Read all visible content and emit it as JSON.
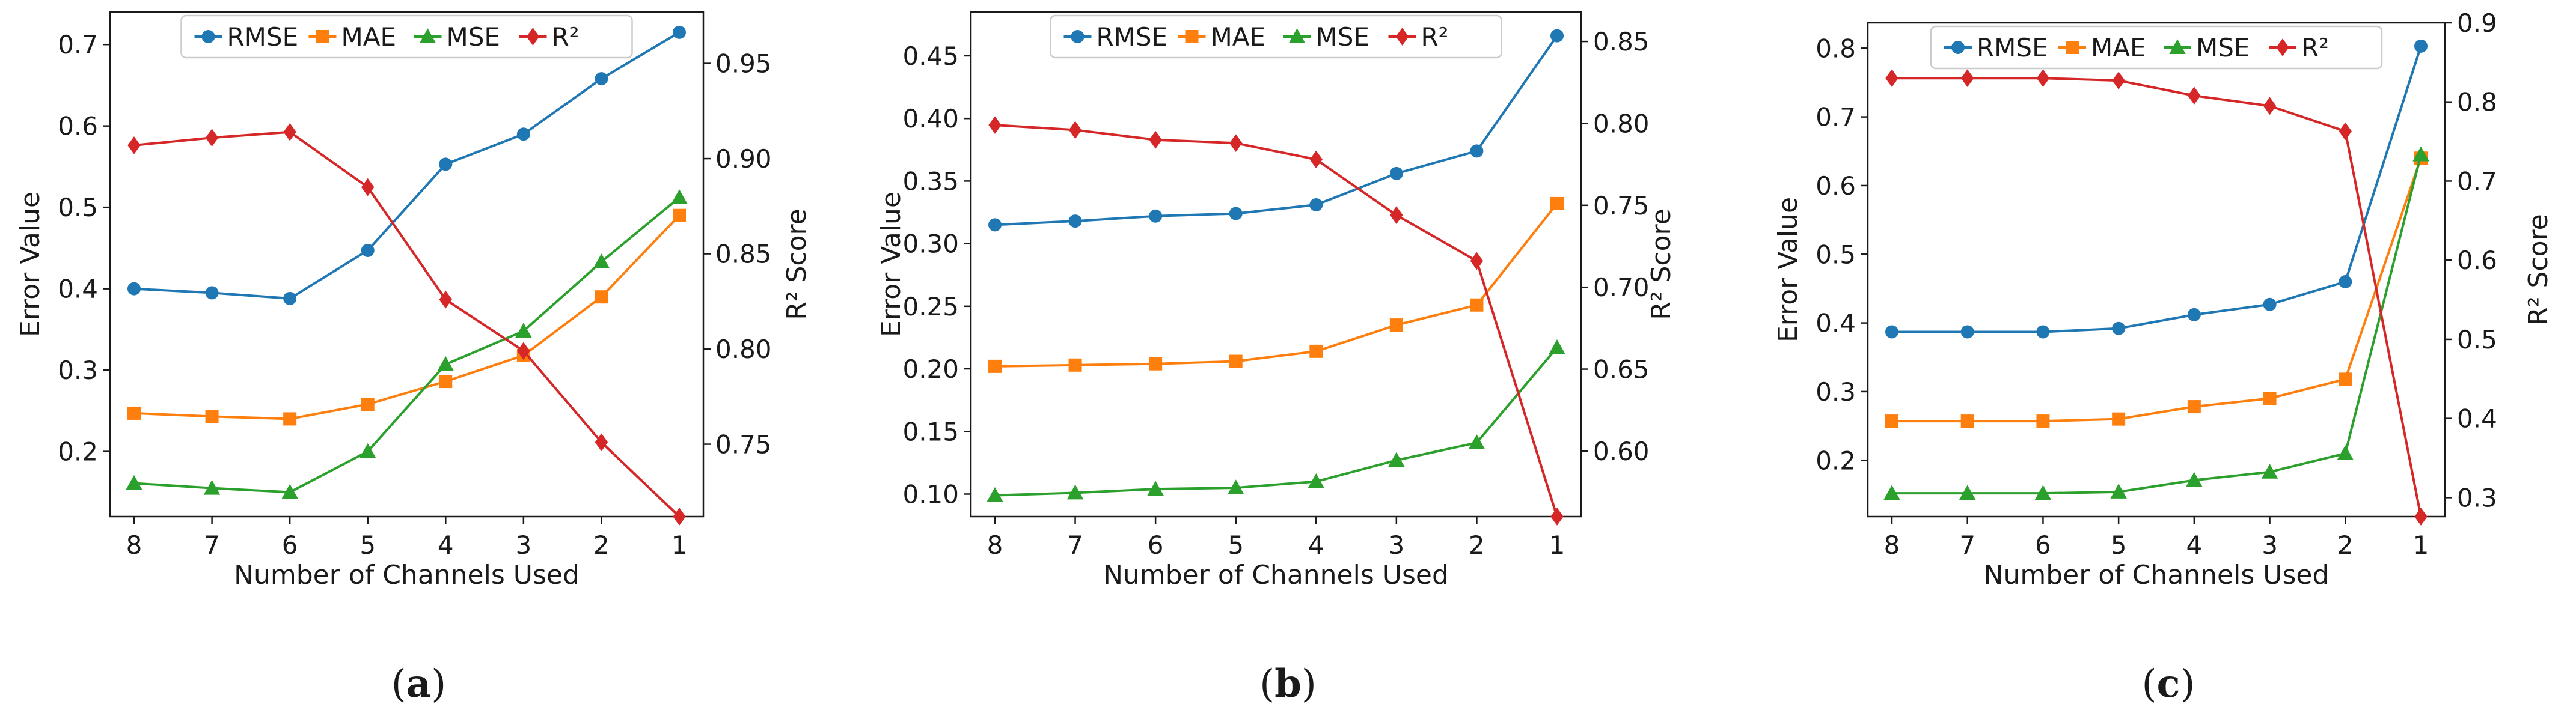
{
  "colors": {
    "RMSE": "#1f77b4",
    "MAE": "#ff7f0e",
    "MSE": "#2ca02c",
    "R2": "#d62728"
  },
  "chart_data": [
    {
      "type": "line",
      "caption": "a",
      "xlabel": "Number of Channels Used",
      "ylabel": "Error Value",
      "y2label": "R² Score",
      "categories": [
        "8",
        "7",
        "6",
        "5",
        "4",
        "3",
        "2",
        "1"
      ],
      "ylim": [
        0.12,
        0.74
      ],
      "yticks": [
        "0.2",
        "0.3",
        "0.4",
        "0.5",
        "0.6",
        "0.7"
      ],
      "y2lim": [
        0.712,
        0.977
      ],
      "y2ticks": [
        "0.75",
        "0.80",
        "0.85",
        "0.90",
        "0.95"
      ],
      "legend": "top-center",
      "series": [
        {
          "name": "RMSE",
          "axis": "left",
          "marker": "circle",
          "values": [
            0.4,
            0.395,
            0.388,
            0.447,
            0.553,
            0.59,
            0.658,
            0.715
          ]
        },
        {
          "name": "MAE",
          "axis": "left",
          "marker": "square",
          "values": [
            0.247,
            0.243,
            0.24,
            0.258,
            0.286,
            0.318,
            0.39,
            0.49
          ]
        },
        {
          "name": "MSE",
          "axis": "left",
          "marker": "triangle",
          "values": [
            0.161,
            0.155,
            0.15,
            0.2,
            0.307,
            0.348,
            0.433,
            0.512
          ]
        },
        {
          "name": "R²",
          "axis": "right",
          "marker": "diamond",
          "values": [
            0.907,
            0.911,
            0.914,
            0.885,
            0.826,
            0.799,
            0.751,
            0.712
          ]
        }
      ]
    },
    {
      "type": "line",
      "caption": "b",
      "xlabel": "Number of Channels Used",
      "ylabel": "Error Value",
      "y2label": "R² Score",
      "categories": [
        "8",
        "7",
        "6",
        "5",
        "4",
        "3",
        "2",
        "1"
      ],
      "ylim": [
        0.082,
        0.485
      ],
      "yticks": [
        "0.10",
        "0.15",
        "0.20",
        "0.25",
        "0.30",
        "0.35",
        "0.40",
        "0.45"
      ],
      "y2lim": [
        0.56,
        0.868
      ],
      "y2ticks": [
        "0.60",
        "0.65",
        "0.70",
        "0.75",
        "0.80",
        "0.85"
      ],
      "legend": "top-center",
      "series": [
        {
          "name": "RMSE",
          "axis": "left",
          "marker": "circle",
          "values": [
            0.315,
            0.318,
            0.322,
            0.324,
            0.331,
            0.356,
            0.374,
            0.466
          ]
        },
        {
          "name": "MAE",
          "axis": "left",
          "marker": "square",
          "values": [
            0.202,
            0.203,
            0.204,
            0.206,
            0.214,
            0.235,
            0.251,
            0.332
          ]
        },
        {
          "name": "MSE",
          "axis": "left",
          "marker": "triangle",
          "values": [
            0.099,
            0.101,
            0.104,
            0.105,
            0.11,
            0.127,
            0.141,
            0.217
          ]
        },
        {
          "name": "R²",
          "axis": "right",
          "marker": "diamond",
          "values": [
            0.799,
            0.796,
            0.79,
            0.788,
            0.778,
            0.744,
            0.716,
            0.56
          ]
        }
      ]
    },
    {
      "type": "line",
      "caption": "c",
      "xlabel": "Number of Channels Used",
      "ylabel": "Error Value",
      "y2label": "R² Score",
      "categories": [
        "8",
        "7",
        "6",
        "5",
        "4",
        "3",
        "2",
        "1"
      ],
      "ylim": [
        0.118,
        0.837
      ],
      "yticks": [
        "0.2",
        "0.3",
        "0.4",
        "0.5",
        "0.6",
        "0.7",
        "0.8"
      ],
      "y2lim": [
        0.276,
        0.9
      ],
      "y2ticks": [
        "0.3",
        "0.4",
        "0.5",
        "0.6",
        "0.7",
        "0.8",
        "0.9"
      ],
      "legend": "top-center",
      "series": [
        {
          "name": "RMSE",
          "axis": "left",
          "marker": "circle",
          "values": [
            0.387,
            0.387,
            0.387,
            0.392,
            0.412,
            0.427,
            0.46,
            0.803
          ]
        },
        {
          "name": "MAE",
          "axis": "left",
          "marker": "square",
          "values": [
            0.257,
            0.257,
            0.257,
            0.26,
            0.278,
            0.29,
            0.318,
            0.64
          ]
        },
        {
          "name": "MSE",
          "axis": "left",
          "marker": "triangle",
          "values": [
            0.152,
            0.152,
            0.152,
            0.154,
            0.171,
            0.183,
            0.21,
            0.645
          ]
        },
        {
          "name": "R²",
          "axis": "right",
          "marker": "diamond",
          "values": [
            0.83,
            0.83,
            0.83,
            0.827,
            0.808,
            0.795,
            0.763,
            0.276
          ]
        }
      ]
    }
  ]
}
